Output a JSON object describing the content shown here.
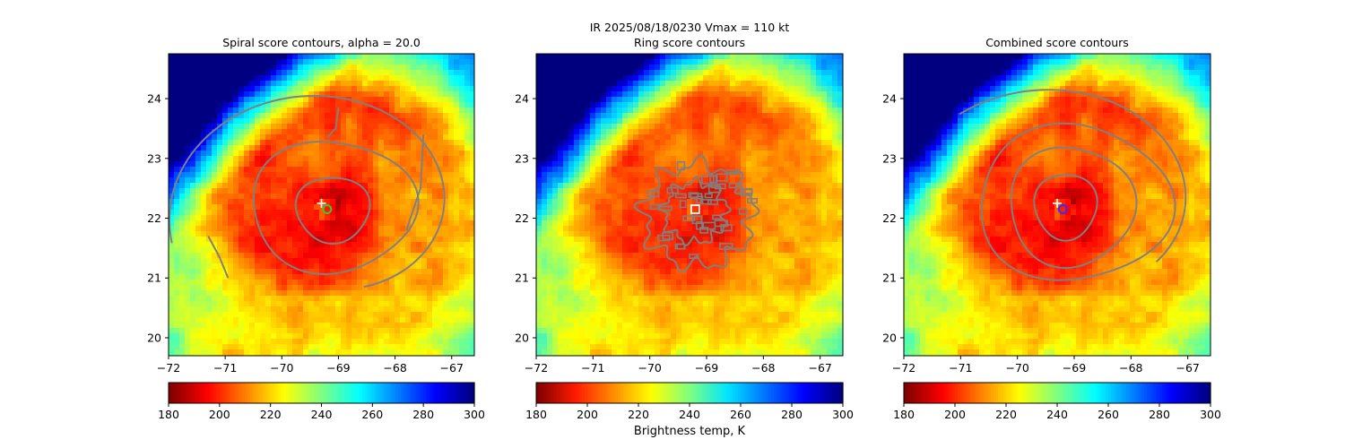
{
  "figure": {
    "suptitle_line1": "IR  2025/08/18/0230    Vmax = 110 kt",
    "colorbar_label": "Brightness temp, K"
  },
  "colors": {
    "contour": "#808080",
    "cmap_spiral": [
      "#800000",
      "#ff0000",
      "#ff8000",
      "#ffff00",
      "#80ff80",
      "#00ffff",
      "#0080ff",
      "#0000ff",
      "#000080"
    ],
    "cmap_ring": [
      "#7f0000",
      "#ff1a00",
      "#ff8c00",
      "#ffff00",
      "#7fff7f",
      "#00e5ff",
      "#0072ff",
      "#0000ff",
      "#00007f"
    ]
  },
  "chart_data": [
    {
      "type": "heatmap",
      "title": "Spiral score contours, alpha = 20.0",
      "xlim": [
        -72.0,
        -66.6
      ],
      "ylim": [
        19.7,
        24.75
      ],
      "xticks": [
        -72,
        -71,
        -70,
        -69,
        -68,
        -67
      ],
      "yticks": [
        20,
        21,
        22,
        23,
        24
      ],
      "colorbar": {
        "range": [
          180,
          300
        ],
        "ticks": [
          180,
          200,
          220,
          240,
          260,
          280,
          300
        ],
        "cmap": "jet_r"
      },
      "center": {
        "lon": -69.2,
        "lat": 22.15
      },
      "markers": [
        {
          "name": "plus-marker",
          "lon": -69.3,
          "lat": 22.25,
          "color": "#ffffff"
        },
        {
          "name": "circle-marker",
          "lon": -69.2,
          "lat": 22.15,
          "color": "#32cd32"
        }
      ],
      "contours": [
        {
          "kind": "ellipse",
          "cx": -69.1,
          "cy": 22.15,
          "rx": 0.65,
          "ry": 0.55
        },
        {
          "kind": "ellipse",
          "cx": -69.1,
          "cy": 22.2,
          "rx": 1.45,
          "ry": 1.1
        },
        {
          "kind": "spiral",
          "cx": -69.2,
          "cy": 22.15,
          "r0": 1.7,
          "r1": 2.7,
          "t0": -1.2,
          "t1": 3.4
        },
        {
          "kind": "line",
          "points": [
            [
              -71.3,
              21.7
            ],
            [
              -71.1,
              21.35
            ],
            [
              -70.95,
              21.0
            ]
          ]
        },
        {
          "kind": "line",
          "points": [
            [
              -69.0,
              23.85
            ],
            [
              -69.05,
              23.5
            ],
            [
              -69.2,
              23.35
            ]
          ]
        },
        {
          "kind": "line",
          "points": [
            [
              -67.5,
              23.4
            ],
            [
              -67.55,
              22.5
            ],
            [
              -67.8,
              21.8
            ]
          ]
        }
      ]
    },
    {
      "type": "heatmap",
      "title": "Ring score contours",
      "xlim": [
        -72.0,
        -66.6
      ],
      "ylim": [
        19.7,
        24.75
      ],
      "xticks": [
        -72,
        -71,
        -70,
        -69,
        -68,
        -67
      ],
      "yticks": [
        20,
        21,
        22,
        23,
        24
      ],
      "colorbar": {
        "range": [
          180,
          300
        ],
        "ticks": [
          180,
          200,
          220,
          240,
          260,
          280,
          300
        ],
        "cmap": "jet_r"
      },
      "center": {
        "lon": -69.2,
        "lat": 22.15
      },
      "markers": [
        {
          "name": "square-marker",
          "lon": -69.2,
          "lat": 22.15,
          "color": "#ffffff"
        }
      ],
      "contours": [
        {
          "kind": "blob",
          "cx": -69.15,
          "cy": 22.05,
          "rx": 0.95,
          "ry": 0.85
        },
        {
          "kind": "blob",
          "cx": -69.2,
          "cy": 22.1,
          "rx": 0.55,
          "ry": 0.5
        }
      ]
    },
    {
      "type": "heatmap",
      "title": "Combined score contours",
      "xlim": [
        -72.0,
        -66.6
      ],
      "ylim": [
        19.7,
        24.75
      ],
      "xticks": [
        -72,
        -71,
        -70,
        -69,
        -68,
        -67
      ],
      "yticks": [
        20,
        21,
        22,
        23,
        24
      ],
      "colorbar": {
        "range": [
          180,
          300
        ],
        "ticks": [
          180,
          200,
          220,
          240,
          260,
          280,
          300
        ],
        "cmap": "jet_r"
      },
      "center": {
        "lon": -69.2,
        "lat": 22.15
      },
      "markers": [
        {
          "name": "plus-marker",
          "lon": -69.3,
          "lat": 22.25,
          "color": "#ffffff"
        },
        {
          "name": "circle-marker",
          "lon": -69.2,
          "lat": 22.15,
          "color": "#3030ff"
        }
      ],
      "contours": [
        {
          "kind": "ellipse",
          "cx": -69.15,
          "cy": 22.2,
          "rx": 0.55,
          "ry": 0.55
        },
        {
          "kind": "ellipse",
          "cx": -69.05,
          "cy": 22.2,
          "rx": 1.1,
          "ry": 1.0
        },
        {
          "kind": "ellipse",
          "cx": -69.0,
          "cy": 22.25,
          "rx": 1.7,
          "ry": 1.3
        },
        {
          "kind": "spiral",
          "cx": -69.2,
          "cy": 22.15,
          "r0": 1.9,
          "r1": 2.6,
          "t0": -0.6,
          "t1": 2.3
        }
      ]
    }
  ]
}
